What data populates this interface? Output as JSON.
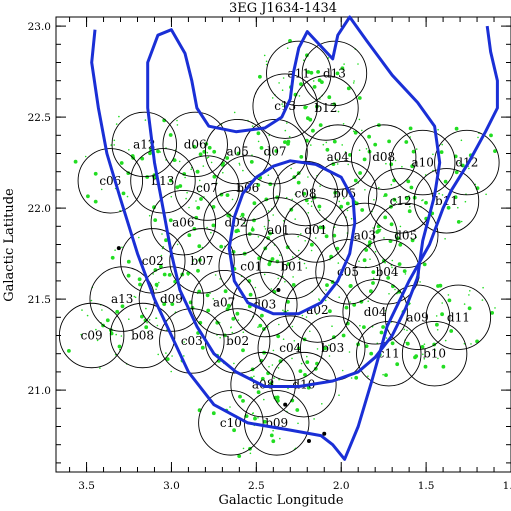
{
  "chart_data": {
    "type": "scatter",
    "title": "3EG J1634-1434",
    "xlabel": "Galactic Longitude",
    "ylabel": "Galactic Latitude",
    "xlim": [
      3.68,
      1.0
    ],
    "ylim": [
      20.55,
      23.05
    ],
    "x_reversed": true,
    "x_ticks": [
      3.5,
      3.0,
      2.5,
      2.0,
      1.5,
      1.0
    ],
    "x_tick_labels": [
      "3.5",
      "3.0",
      "2.5",
      "2.0",
      "1.5",
      "1.0"
    ],
    "y_ticks": [
      21.0,
      21.5,
      22.0,
      22.5,
      23.0
    ],
    "y_tick_labels": [
      "21.0",
      "21.5",
      "22.0",
      "22.5",
      "23.0"
    ],
    "grid": false,
    "colors": {
      "contour": "#1a2fd6",
      "source": "#22dd22",
      "field": "#000000",
      "star": "#000000"
    },
    "field_radius": 0.19,
    "fields": [
      {
        "label": "a11",
        "l": 2.25,
        "b": 22.74
      },
      {
        "label": "d13",
        "l": 2.04,
        "b": 22.74
      },
      {
        "label": "c13",
        "l": 2.33,
        "b": 22.56
      },
      {
        "label": "b12",
        "l": 2.09,
        "b": 22.55
      },
      {
        "label": "a12",
        "l": 3.16,
        "b": 22.35
      },
      {
        "label": "d06",
        "l": 2.86,
        "b": 22.35
      },
      {
        "label": "a05",
        "l": 2.61,
        "b": 22.31
      },
      {
        "label": "d07",
        "l": 2.39,
        "b": 22.31
      },
      {
        "label": "a04",
        "l": 2.02,
        "b": 22.28
      },
      {
        "label": "d08",
        "l": 1.75,
        "b": 22.28
      },
      {
        "label": "a10",
        "l": 1.52,
        "b": 22.25
      },
      {
        "label": "d12",
        "l": 1.26,
        "b": 22.25
      },
      {
        "label": "c06",
        "l": 3.36,
        "b": 22.15
      },
      {
        "label": "b13",
        "l": 3.05,
        "b": 22.15
      },
      {
        "label": "c07",
        "l": 2.79,
        "b": 22.11
      },
      {
        "label": "b06",
        "l": 2.55,
        "b": 22.11
      },
      {
        "label": "c08",
        "l": 2.21,
        "b": 22.08
      },
      {
        "label": "b05",
        "l": 1.98,
        "b": 22.08
      },
      {
        "label": "c12",
        "l": 1.65,
        "b": 22.04
      },
      {
        "label": "b11",
        "l": 1.38,
        "b": 22.04
      },
      {
        "label": "a06",
        "l": 2.93,
        "b": 21.92
      },
      {
        "label": "d02",
        "l": 2.62,
        "b": 21.92
      },
      {
        "label": "a01",
        "l": 2.37,
        "b": 21.88
      },
      {
        "label": "d01",
        "l": 2.15,
        "b": 21.88
      },
      {
        "label": "a03",
        "l": 1.86,
        "b": 21.85
      },
      {
        "label": "d05",
        "l": 1.62,
        "b": 21.85
      },
      {
        "label": "c02",
        "l": 3.11,
        "b": 21.71
      },
      {
        "label": "b07",
        "l": 2.82,
        "b": 21.71
      },
      {
        "label": "c01",
        "l": 2.53,
        "b": 21.68
      },
      {
        "label": "b01",
        "l": 2.29,
        "b": 21.68
      },
      {
        "label": "c05",
        "l": 1.96,
        "b": 21.65
      },
      {
        "label": "b04",
        "l": 1.73,
        "b": 21.65
      },
      {
        "label": "a13",
        "l": 3.29,
        "b": 21.5
      },
      {
        "label": "d09",
        "l": 3.0,
        "b": 21.5
      },
      {
        "label": "a07",
        "l": 2.69,
        "b": 21.48
      },
      {
        "label": "d03",
        "l": 2.45,
        "b": 21.47
      },
      {
        "label": "a02",
        "l": 2.14,
        "b": 21.44
      },
      {
        "label": "d04",
        "l": 1.8,
        "b": 21.43
      },
      {
        "label": "a09",
        "l": 1.55,
        "b": 21.4
      },
      {
        "label": "d11",
        "l": 1.31,
        "b": 21.4
      },
      {
        "label": "c09",
        "l": 3.47,
        "b": 21.3
      },
      {
        "label": "b08",
        "l": 3.17,
        "b": 21.3
      },
      {
        "label": "c03",
        "l": 2.88,
        "b": 21.27
      },
      {
        "label": "b02",
        "l": 2.61,
        "b": 21.27
      },
      {
        "label": "c04",
        "l": 2.3,
        "b": 21.23
      },
      {
        "label": "b03",
        "l": 2.05,
        "b": 21.23
      },
      {
        "label": "c11",
        "l": 1.72,
        "b": 21.2
      },
      {
        "label": "b10",
        "l": 1.45,
        "b": 21.2
      },
      {
        "label": "a08",
        "l": 2.46,
        "b": 21.03
      },
      {
        "label": "d10",
        "l": 2.22,
        "b": 21.03
      },
      {
        "label": "c10",
        "l": 2.65,
        "b": 20.82
      },
      {
        "label": "b09",
        "l": 2.38,
        "b": 20.82
      }
    ],
    "contours": [
      {
        "name": "outer",
        "closed": false,
        "points": [
          [
            3.45,
            22.98
          ],
          [
            3.47,
            22.8
          ],
          [
            3.43,
            22.55
          ],
          [
            3.38,
            22.3
          ],
          [
            3.3,
            22.05
          ],
          [
            3.2,
            21.75
          ],
          [
            3.1,
            21.5
          ],
          [
            3.0,
            21.3
          ],
          [
            2.9,
            21.1
          ],
          [
            2.75,
            20.92
          ],
          [
            2.55,
            20.82
          ],
          [
            2.3,
            20.78
          ],
          [
            2.12,
            20.75
          ],
          [
            2.05,
            20.7
          ],
          [
            1.98,
            20.62
          ],
          [
            1.9,
            20.8
          ],
          [
            1.82,
            21.05
          ],
          [
            1.73,
            21.35
          ],
          [
            1.6,
            21.6
          ],
          [
            1.48,
            21.8
          ],
          [
            1.4,
            22.0
          ],
          [
            1.35,
            22.1
          ],
          [
            1.25,
            22.25
          ],
          [
            1.15,
            22.42
          ],
          [
            1.08,
            22.55
          ],
          [
            1.08,
            22.7
          ],
          [
            1.12,
            22.86
          ],
          [
            1.14,
            23.0
          ]
        ]
      },
      {
        "name": "middle",
        "closed": true,
        "points": [
          [
            2.2,
            22.97
          ],
          [
            2.05,
            22.82
          ],
          [
            2.02,
            22.95
          ],
          [
            1.95,
            23.05
          ],
          [
            1.85,
            22.92
          ],
          [
            1.7,
            22.73
          ],
          [
            1.55,
            22.58
          ],
          [
            1.45,
            22.45
          ],
          [
            1.42,
            22.25
          ],
          [
            1.45,
            22.07
          ],
          [
            1.52,
            21.82
          ],
          [
            1.55,
            21.62
          ],
          [
            1.62,
            21.45
          ],
          [
            1.7,
            21.3
          ],
          [
            1.8,
            21.18
          ],
          [
            1.9,
            21.1
          ],
          [
            2.05,
            21.05
          ],
          [
            2.25,
            21.02
          ],
          [
            2.45,
            21.02
          ],
          [
            2.62,
            21.1
          ],
          [
            2.75,
            21.2
          ],
          [
            2.85,
            21.35
          ],
          [
            2.95,
            21.55
          ],
          [
            3.0,
            21.75
          ],
          [
            3.05,
            22.0
          ],
          [
            3.1,
            22.25
          ],
          [
            3.14,
            22.55
          ],
          [
            3.14,
            22.8
          ],
          [
            3.08,
            22.95
          ],
          [
            3.0,
            22.98
          ],
          [
            2.92,
            22.85
          ],
          [
            2.88,
            22.7
          ],
          [
            2.85,
            22.55
          ],
          [
            2.78,
            22.45
          ],
          [
            2.62,
            22.42
          ],
          [
            2.45,
            22.44
          ],
          [
            2.35,
            22.5
          ],
          [
            2.3,
            22.6
          ],
          [
            2.28,
            22.75
          ],
          [
            2.25,
            22.88
          ],
          [
            2.2,
            22.97
          ]
        ]
      },
      {
        "name": "inner",
        "closed": true,
        "points": [
          [
            2.3,
            22.26
          ],
          [
            2.15,
            22.24
          ],
          [
            2.0,
            22.17
          ],
          [
            1.93,
            22.05
          ],
          [
            1.92,
            21.92
          ],
          [
            1.95,
            21.75
          ],
          [
            2.02,
            21.6
          ],
          [
            2.12,
            21.48
          ],
          [
            2.25,
            21.42
          ],
          [
            2.4,
            21.42
          ],
          [
            2.55,
            21.48
          ],
          [
            2.63,
            21.6
          ],
          [
            2.66,
            21.78
          ],
          [
            2.63,
            21.95
          ],
          [
            2.58,
            22.08
          ],
          [
            2.5,
            22.17
          ],
          [
            2.4,
            22.23
          ],
          [
            2.3,
            22.26
          ]
        ]
      }
    ],
    "marked_positions": [
      {
        "l": 2.37,
        "b": 21.55
      },
      {
        "l": 2.1,
        "b": 20.76
      },
      {
        "l": 3.31,
        "b": 21.78
      },
      {
        "l": 2.33,
        "b": 20.92
      },
      {
        "l": 2.19,
        "b": 20.72
      }
    ]
  }
}
